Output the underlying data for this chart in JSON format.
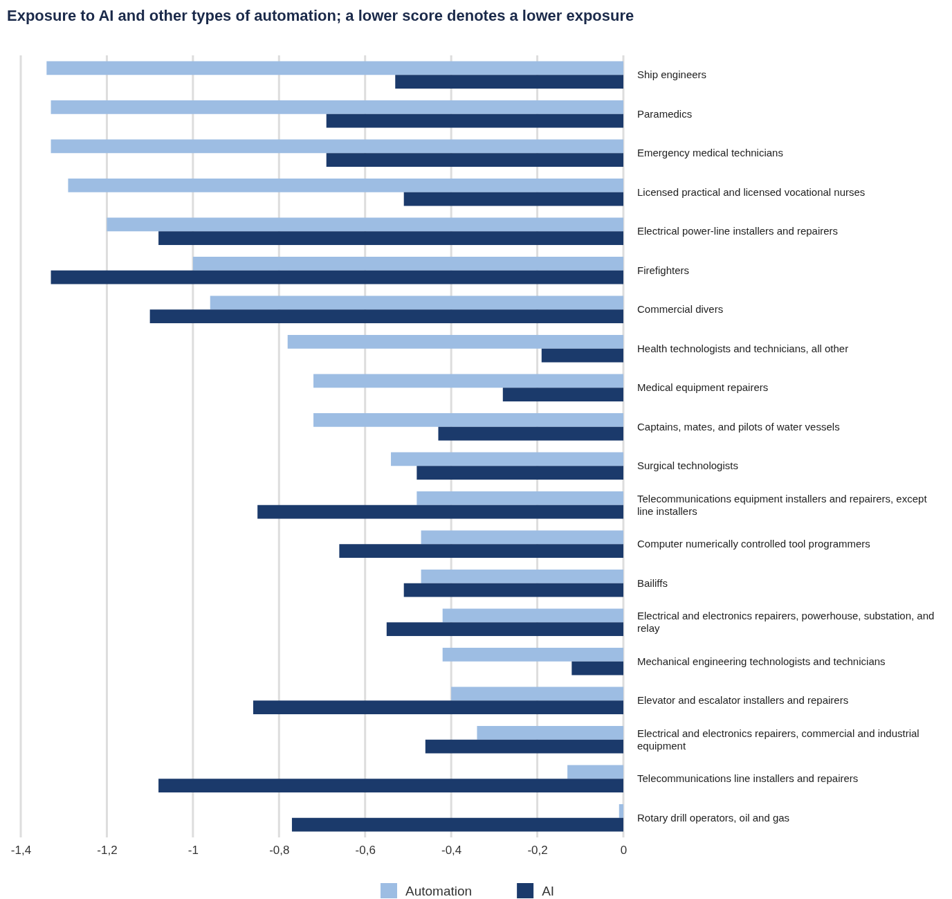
{
  "chart_data": {
    "type": "bar",
    "orientation": "horizontal",
    "title": "Exposure to AI and other types of automation; a lower score denotes a lower exposure",
    "categories": [
      "Ship engineers",
      "Paramedics",
      "Emergency medical technicians",
      "Licensed practical and licensed vocational nurses",
      "Electrical power-line installers and repairers",
      "Firefighters",
      "Commercial divers",
      "Health technologists and technicians, all other",
      "Medical equipment repairers",
      "Captains, mates, and pilots of water vessels",
      "Surgical technologists",
      "Telecommunications equipment installers and repairers, except line installers",
      "Computer numerically controlled tool programmers",
      "Bailiffs",
      "Electrical and electronics repairers, powerhouse, substation, and relay",
      "Mechanical engineering technologists and technicians",
      "Elevator and escalator installers and repairers",
      "Electrical and electronics repairers, commercial and industrial equipment",
      "Telecommunications line installers and repairers",
      "Rotary drill operators, oil and gas"
    ],
    "series": [
      {
        "name": "Automation",
        "color": "#9dbde3",
        "values": [
          -1.34,
          -1.33,
          -1.33,
          -1.29,
          -1.2,
          -1.0,
          -0.96,
          -0.78,
          -0.72,
          -0.72,
          -0.54,
          -0.48,
          -0.47,
          -0.47,
          -0.42,
          -0.42,
          -0.4,
          -0.34,
          -0.13,
          -0.01
        ]
      },
      {
        "name": "AI",
        "color": "#1b3a6b",
        "values": [
          -0.53,
          -0.69,
          -0.69,
          -0.51,
          -1.08,
          -1.33,
          -1.1,
          -0.19,
          -0.28,
          -0.43,
          -0.48,
          -0.85,
          -0.66,
          -0.51,
          -0.55,
          -0.12,
          -0.86,
          -0.46,
          -1.08,
          -0.77
        ]
      }
    ],
    "xlim": [
      -1.4,
      0
    ],
    "xticks": [
      {
        "value": -1.4,
        "label": "-1,4"
      },
      {
        "value": -1.2,
        "label": "-1,2"
      },
      {
        "value": -1,
        "label": "-1"
      },
      {
        "value": -0.8,
        "label": "-0,8"
      },
      {
        "value": -0.6,
        "label": "-0,6"
      },
      {
        "value": -0.4,
        "label": "-0,4"
      },
      {
        "value": -0.2,
        "label": "-0,2"
      },
      0
    ],
    "grid": "x",
    "legend": "bottom"
  }
}
